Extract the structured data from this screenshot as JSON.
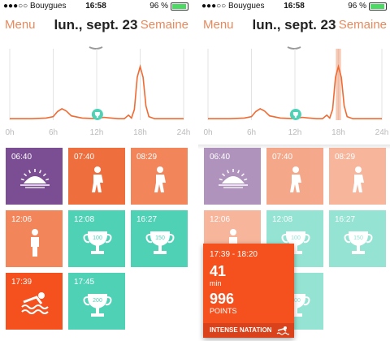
{
  "status": {
    "carrier": "●●●○○ Bouygues",
    "time": "16:58",
    "battery": "96 %"
  },
  "header": {
    "menu": "Menu",
    "date": "lun., sept. 23",
    "week": "Semaine"
  },
  "axis_labels": [
    "0h",
    "6h",
    "12h",
    "18h",
    "24h"
  ],
  "tiles": [
    {
      "time": "06:40",
      "icon": "sunrise-icon",
      "color": "#7b4d92"
    },
    {
      "time": "07:40",
      "icon": "walking-icon",
      "color": "#ef6e3d"
    },
    {
      "time": "08:29",
      "icon": "walking-icon",
      "color": "#f3855a"
    },
    {
      "time": "12:06",
      "icon": "standing-icon",
      "color": "#f3855a"
    },
    {
      "time": "12:08",
      "icon": "trophy-icon",
      "badge": "100",
      "color": "#4fd1b6"
    },
    {
      "time": "16:27",
      "icon": "trophy-icon",
      "badge": "150",
      "color": "#4fd1b6"
    },
    {
      "time": "17:39",
      "icon": "swimming-icon",
      "color": "#f4511e"
    },
    {
      "time": "17:45",
      "icon": "trophy-icon",
      "badge": "200",
      "color": "#4fd1b6"
    }
  ],
  "popup": {
    "range": "17:39 - 18:20",
    "duration": "41",
    "duration_unit": "min",
    "points": "996",
    "points_unit": "POINTS",
    "activity": "INTENSE NATATION"
  },
  "chart_data": {
    "type": "line",
    "x_range_hours": [
      0,
      24
    ],
    "points": [
      [
        0,
        0.02
      ],
      [
        3,
        0.02
      ],
      [
        5,
        0.03
      ],
      [
        6,
        0.05
      ],
      [
        6.6,
        0.12
      ],
      [
        7.2,
        0.16
      ],
      [
        7.8,
        0.13
      ],
      [
        8.5,
        0.06
      ],
      [
        10,
        0.03
      ],
      [
        12,
        0.02
      ],
      [
        13,
        0.04
      ],
      [
        14,
        0.03
      ],
      [
        15,
        0.02
      ],
      [
        15.8,
        0.02
      ],
      [
        16.4,
        0.07
      ],
      [
        16.8,
        0.03
      ],
      [
        17.2,
        0.15
      ],
      [
        17.6,
        0.6
      ],
      [
        18,
        0.75
      ],
      [
        18.4,
        0.6
      ],
      [
        18.8,
        0.2
      ],
      [
        19.2,
        0.05
      ],
      [
        20,
        0.02
      ],
      [
        22,
        0.02
      ],
      [
        24,
        0.02
      ]
    ],
    "marker_hour": 12.1,
    "highlight_range_hours": [
      17.65,
      18.35
    ],
    "grid": true
  }
}
